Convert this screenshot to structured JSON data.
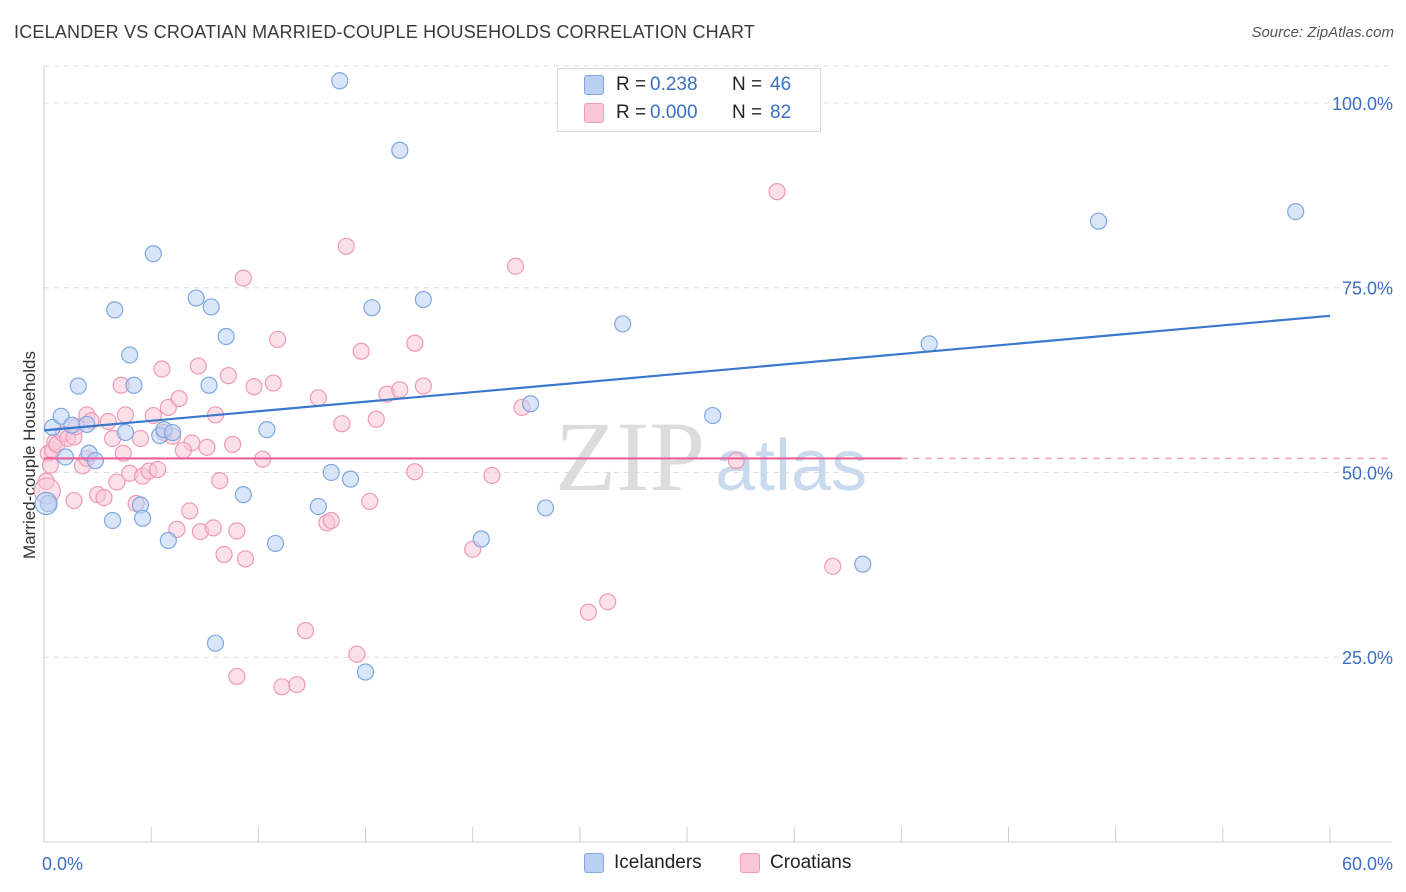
{
  "title": "ICELANDER VS CROATIAN MARRIED-COUPLE HOUSEHOLDS CORRELATION CHART",
  "source": "Source: ZipAtlas.com",
  "watermark": {
    "zip": "ZIP",
    "atlas": "atlas"
  },
  "colors": {
    "blue": "#7fa8e0",
    "blue_fill": "#b9d0f2",
    "blue_line": "#3a78cc",
    "pink": "#ef9ab8",
    "pink_fill": "#f8c6d6",
    "pink_line": "#e8609a",
    "axis_text": "#3a6fc4"
  },
  "legend": {
    "series": [
      {
        "r_label": "R =",
        "r_value": "0.238",
        "n_label": "N =",
        "n_value": "46"
      },
      {
        "r_label": "R =",
        "r_value": "0.000",
        "n_label": "N =",
        "n_value": "82"
      }
    ]
  },
  "bottom_legend": [
    "Icelanders",
    "Croatians"
  ],
  "chart_data": {
    "type": "scatter",
    "title": "ICELANDER VS CROATIAN MARRIED-COUPLE HOUSEHOLDS CORRELATION CHART",
    "xlabel": "",
    "ylabel": "Married-couple Households",
    "xlim": [
      0,
      60
    ],
    "ylim": [
      0,
      105
    ],
    "x_tick_labels": [
      "0.0%",
      "60.0%"
    ],
    "y_ticks": [
      25,
      50,
      75,
      100
    ],
    "y_tick_labels": [
      "25.0%",
      "50.0%",
      "75.0%",
      "100.0%"
    ],
    "grid": "horizontal dashed",
    "series": [
      {
        "name": "Icelanders",
        "r": 0.238,
        "n": 46,
        "trend": {
          "x": [
            0,
            60
          ],
          "y": [
            55.7,
            71.2
          ]
        },
        "points": [
          [
            0.2,
            45.8
          ],
          [
            0.4,
            56.1
          ],
          [
            0.8,
            57.6
          ],
          [
            1.0,
            52.1
          ],
          [
            1.3,
            56.4
          ],
          [
            1.6,
            61.7
          ],
          [
            2.0,
            56.5
          ],
          [
            2.1,
            52.6
          ],
          [
            2.4,
            51.6
          ],
          [
            3.2,
            43.5
          ],
          [
            3.3,
            72.0
          ],
          [
            3.8,
            55.4
          ],
          [
            4.0,
            65.9
          ],
          [
            4.2,
            61.8
          ],
          [
            4.5,
            45.6
          ],
          [
            4.6,
            43.8
          ],
          [
            5.1,
            79.6
          ],
          [
            5.4,
            55.0
          ],
          [
            5.6,
            55.8
          ],
          [
            5.8,
            40.8
          ],
          [
            6.0,
            55.4
          ],
          [
            7.1,
            73.6
          ],
          [
            7.8,
            72.4
          ],
          [
            8.0,
            26.9
          ],
          [
            7.7,
            61.8
          ],
          [
            8.5,
            68.4
          ],
          [
            9.3,
            47.0
          ],
          [
            10.4,
            55.8
          ],
          [
            10.8,
            40.4
          ],
          [
            12.8,
            45.4
          ],
          [
            13.4,
            50.0
          ],
          [
            13.8,
            103.0
          ],
          [
            14.3,
            49.1
          ],
          [
            15.3,
            72.3
          ],
          [
            15.0,
            23.0
          ],
          [
            16.6,
            93.6
          ],
          [
            17.7,
            73.4
          ],
          [
            20.4,
            41.0
          ],
          [
            22.7,
            59.3
          ],
          [
            23.4,
            45.2
          ],
          [
            27.0,
            70.1
          ],
          [
            31.2,
            57.7
          ],
          [
            38.2,
            37.6
          ],
          [
            41.3,
            67.4
          ],
          [
            49.2,
            84.0
          ],
          [
            58.4,
            85.3
          ]
        ]
      },
      {
        "name": "Croatians",
        "r": 0.0,
        "n": 82,
        "trend": {
          "x": [
            0,
            40
          ],
          "y": [
            51.9,
            51.9
          ]
        },
        "points": [
          [
            0.1,
            48.8
          ],
          [
            0.2,
            52.6
          ],
          [
            0.4,
            53.0
          ],
          [
            0.5,
            54.1
          ],
          [
            0.6,
            53.8
          ],
          [
            0.9,
            55.2
          ],
          [
            1.1,
            54.6
          ],
          [
            1.4,
            54.8
          ],
          [
            1.5,
            56.2
          ],
          [
            1.8,
            50.9
          ],
          [
            2.0,
            57.8
          ],
          [
            2.2,
            57.0
          ],
          [
            2.5,
            47.0
          ],
          [
            2.8,
            46.6
          ],
          [
            3.0,
            56.9
          ],
          [
            3.2,
            54.6
          ],
          [
            3.4,
            48.7
          ],
          [
            3.6,
            61.8
          ],
          [
            3.7,
            52.6
          ],
          [
            3.8,
            57.8
          ],
          [
            4.0,
            49.9
          ],
          [
            4.3,
            45.8
          ],
          [
            4.5,
            54.6
          ],
          [
            4.6,
            49.5
          ],
          [
            4.9,
            50.2
          ],
          [
            5.1,
            57.7
          ],
          [
            5.3,
            50.4
          ],
          [
            5.5,
            64.0
          ],
          [
            5.6,
            55.4
          ],
          [
            5.8,
            58.8
          ],
          [
            6.0,
            54.9
          ],
          [
            6.2,
            42.3
          ],
          [
            6.3,
            60.0
          ],
          [
            6.8,
            44.8
          ],
          [
            6.9,
            54.0
          ],
          [
            7.2,
            64.4
          ],
          [
            7.3,
            42.0
          ],
          [
            7.6,
            53.4
          ],
          [
            7.9,
            42.5
          ],
          [
            8.0,
            57.8
          ],
          [
            8.2,
            48.9
          ],
          [
            8.4,
            38.9
          ],
          [
            8.6,
            63.1
          ],
          [
            8.8,
            53.8
          ],
          [
            9.0,
            22.4
          ],
          [
            9.3,
            76.3
          ],
          [
            9.0,
            42.1
          ],
          [
            9.4,
            38.3
          ],
          [
            9.8,
            61.6
          ],
          [
            10.2,
            51.8
          ],
          [
            10.7,
            62.1
          ],
          [
            10.9,
            68.0
          ],
          [
            11.1,
            21.0
          ],
          [
            11.8,
            21.3
          ],
          [
            12.2,
            28.6
          ],
          [
            12.8,
            60.1
          ],
          [
            13.2,
            43.2
          ],
          [
            13.4,
            43.5
          ],
          [
            13.9,
            56.6
          ],
          [
            14.1,
            80.6
          ],
          [
            14.8,
            66.4
          ],
          [
            14.6,
            25.4
          ],
          [
            15.2,
            46.1
          ],
          [
            15.5,
            57.2
          ],
          [
            16.0,
            60.6
          ],
          [
            16.6,
            61.2
          ],
          [
            17.3,
            67.5
          ],
          [
            17.7,
            61.7
          ],
          [
            17.3,
            50.1
          ],
          [
            20.0,
            39.6
          ],
          [
            20.9,
            49.6
          ],
          [
            22.3,
            58.8
          ],
          [
            22.0,
            77.9
          ],
          [
            25.4,
            31.1
          ],
          [
            26.3,
            32.5
          ],
          [
            32.3,
            51.6
          ],
          [
            34.2,
            88.0
          ],
          [
            36.8,
            37.3
          ],
          [
            0.3,
            51.0
          ],
          [
            2.0,
            51.9
          ],
          [
            6.5,
            53.0
          ],
          [
            1.4,
            46.2
          ]
        ]
      }
    ]
  }
}
